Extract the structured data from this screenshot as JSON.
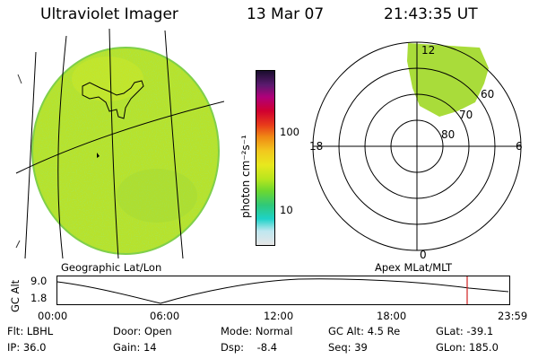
{
  "header": {
    "title": "Ultraviolet Imager",
    "date": "13 Mar 07",
    "time": "21:43:35 UT"
  },
  "colorbar": {
    "unit_label": "photon cm⁻²s⁻¹",
    "ticks": [
      "100",
      "10"
    ],
    "colors": [
      "#1a0d2e",
      "#5a1a6e",
      "#b0007a",
      "#d00030",
      "#e83a1a",
      "#f08a14",
      "#f2c81e",
      "#e8e81e",
      "#b8e61e",
      "#6cd830",
      "#30c878",
      "#1ed2c8",
      "#bfe7f0",
      "#e6e6e6"
    ]
  },
  "left_panel": {
    "label": "Geographic Lat/Lon"
  },
  "right_panel": {
    "label": "Apex MLat/MLT",
    "mlt_labels": {
      "top": "12",
      "left": "18",
      "right": "6",
      "bottom": "0"
    },
    "lat_labels": [
      "60",
      "70",
      "80"
    ]
  },
  "altitude_plot": {
    "ylabel": "GC Alt",
    "yticks": [
      "9.0",
      "1.8"
    ],
    "xticks": [
      "00:00",
      "06:00",
      "12:00",
      "18:00",
      "23:59"
    ],
    "current_marker_color": "#d02020"
  },
  "info": {
    "flt": "Flt: LBHL",
    "ip": "IP: 36.0",
    "door": "Door: Open",
    "gain": "Gain: 14",
    "mode": "Mode: Normal",
    "dsp": "Dsp:    -8.4",
    "gcalt": "GC Alt: 4.5 Re",
    "seq": "Seq: 39",
    "glat": "GLat: -39.1",
    "glon": "GLon: 185.0"
  }
}
